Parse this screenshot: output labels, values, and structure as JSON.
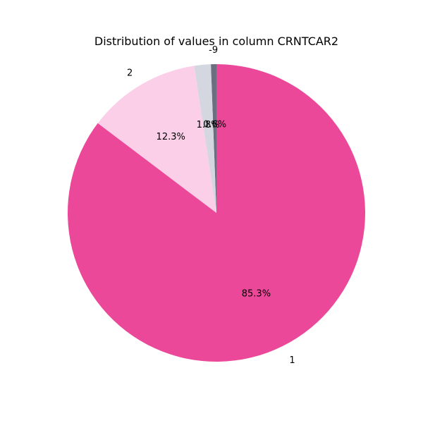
{
  "chart_data": {
    "type": "pie",
    "title": "Distribution of values in column CRNTCAR2",
    "slices": [
      {
        "label": "-9",
        "value": 0.6,
        "pct_label": "0.6%",
        "color": "#6b6f80"
      },
      {
        "label": "",
        "value": 1.8,
        "pct_label": "1.8%",
        "color": "#d4d6e0"
      },
      {
        "label": "2",
        "value": 12.3,
        "pct_label": "12.3%",
        "color": "#fbcfe8"
      },
      {
        "label": "1",
        "value": 85.3,
        "pct_label": "85.3%",
        "color": "#ec4899"
      }
    ],
    "start_angle_deg": 90,
    "direction": "counterclockwise",
    "legend": "none"
  }
}
